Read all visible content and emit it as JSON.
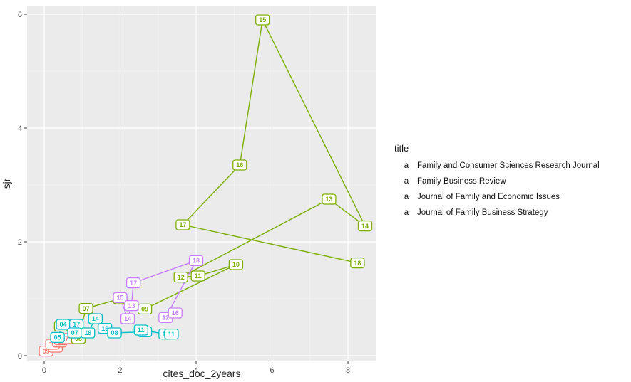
{
  "chart_data": {
    "type": "line",
    "title": "",
    "xlabel": "cites_doc_2years",
    "ylabel": "sjr",
    "xlim": [
      -0.45,
      8.75
    ],
    "ylim": [
      -0.1,
      6.15
    ],
    "xticks": [
      0,
      2,
      4,
      6,
      8
    ],
    "yticks": [
      0,
      2,
      4,
      6
    ],
    "grid": true,
    "legend": {
      "title": "title",
      "placement": "right",
      "key_glyph": "a"
    },
    "series": [
      {
        "name": "Family and Consumer Sciences Research Journal",
        "color": "#F8766D",
        "points": [
          {
            "label": "09",
            "x": 0.05,
            "y": 0.08
          },
          {
            "label": "18",
            "x": 0.3,
            "y": 0.15
          },
          {
            "label": "16",
            "x": 0.22,
            "y": 0.2
          },
          {
            "label": "13",
            "x": 0.4,
            "y": 0.24
          },
          {
            "label": "14",
            "x": 0.45,
            "y": 0.28
          },
          {
            "label": "17",
            "x": 0.55,
            "y": 0.3
          }
        ]
      },
      {
        "name": "Family Business Review",
        "color": "#7CAE00",
        "points": [
          {
            "label": "06",
            "x": 0.45,
            "y": 0.52
          },
          {
            "label": "05",
            "x": 0.9,
            "y": 0.3
          },
          {
            "label": "07",
            "x": 1.1,
            "y": 0.83
          },
          {
            "label": "08",
            "x": 2.0,
            "y": 1.0
          },
          {
            "label": "09",
            "x": 2.65,
            "y": 0.82
          },
          {
            "label": "10",
            "x": 5.05,
            "y": 1.6
          },
          {
            "label": "11",
            "x": 4.05,
            "y": 1.4
          },
          {
            "label": "12",
            "x": 3.6,
            "y": 1.38
          },
          {
            "label": "13",
            "x": 7.5,
            "y": 2.75
          },
          {
            "label": "14",
            "x": 8.45,
            "y": 2.28
          },
          {
            "label": "15",
            "x": 5.75,
            "y": 5.9
          },
          {
            "label": "16",
            "x": 5.15,
            "y": 3.35
          },
          {
            "label": "17",
            "x": 3.65,
            "y": 2.3
          },
          {
            "label": "18",
            "x": 8.25,
            "y": 1.63
          }
        ]
      },
      {
        "name": "Journal of Family and Economic Issues",
        "color": "#00BFC4",
        "points": [
          {
            "label": "05",
            "x": 0.35,
            "y": 0.32
          },
          {
            "label": "04",
            "x": 0.5,
            "y": 0.55
          },
          {
            "label": "17",
            "x": 0.85,
            "y": 0.55
          },
          {
            "label": "07",
            "x": 0.8,
            "y": 0.4
          },
          {
            "label": "18",
            "x": 1.15,
            "y": 0.4
          },
          {
            "label": "14",
            "x": 1.35,
            "y": 0.65
          },
          {
            "label": "15",
            "x": 1.6,
            "y": 0.48
          },
          {
            "label": "08",
            "x": 1.85,
            "y": 0.4
          },
          {
            "label": "10",
            "x": 2.65,
            "y": 0.42
          },
          {
            "label": "11",
            "x": 2.55,
            "y": 0.45
          },
          {
            "label": "12",
            "x": 3.2,
            "y": 0.38
          },
          {
            "label": "11",
            "x": 3.35,
            "y": 0.38
          }
        ]
      },
      {
        "name": "Journal of Family Business Strategy",
        "color": "#C77CFF",
        "points": [
          {
            "label": "15",
            "x": 2.0,
            "y": 1.02
          },
          {
            "label": "14",
            "x": 2.2,
            "y": 0.65
          },
          {
            "label": "13",
            "x": 2.3,
            "y": 0.88
          },
          {
            "label": "17",
            "x": 2.35,
            "y": 1.28
          },
          {
            "label": "18",
            "x": 4.0,
            "y": 1.67
          },
          {
            "label": "12",
            "x": 3.2,
            "y": 0.67
          },
          {
            "label": "16",
            "x": 3.45,
            "y": 0.75
          }
        ]
      }
    ]
  }
}
